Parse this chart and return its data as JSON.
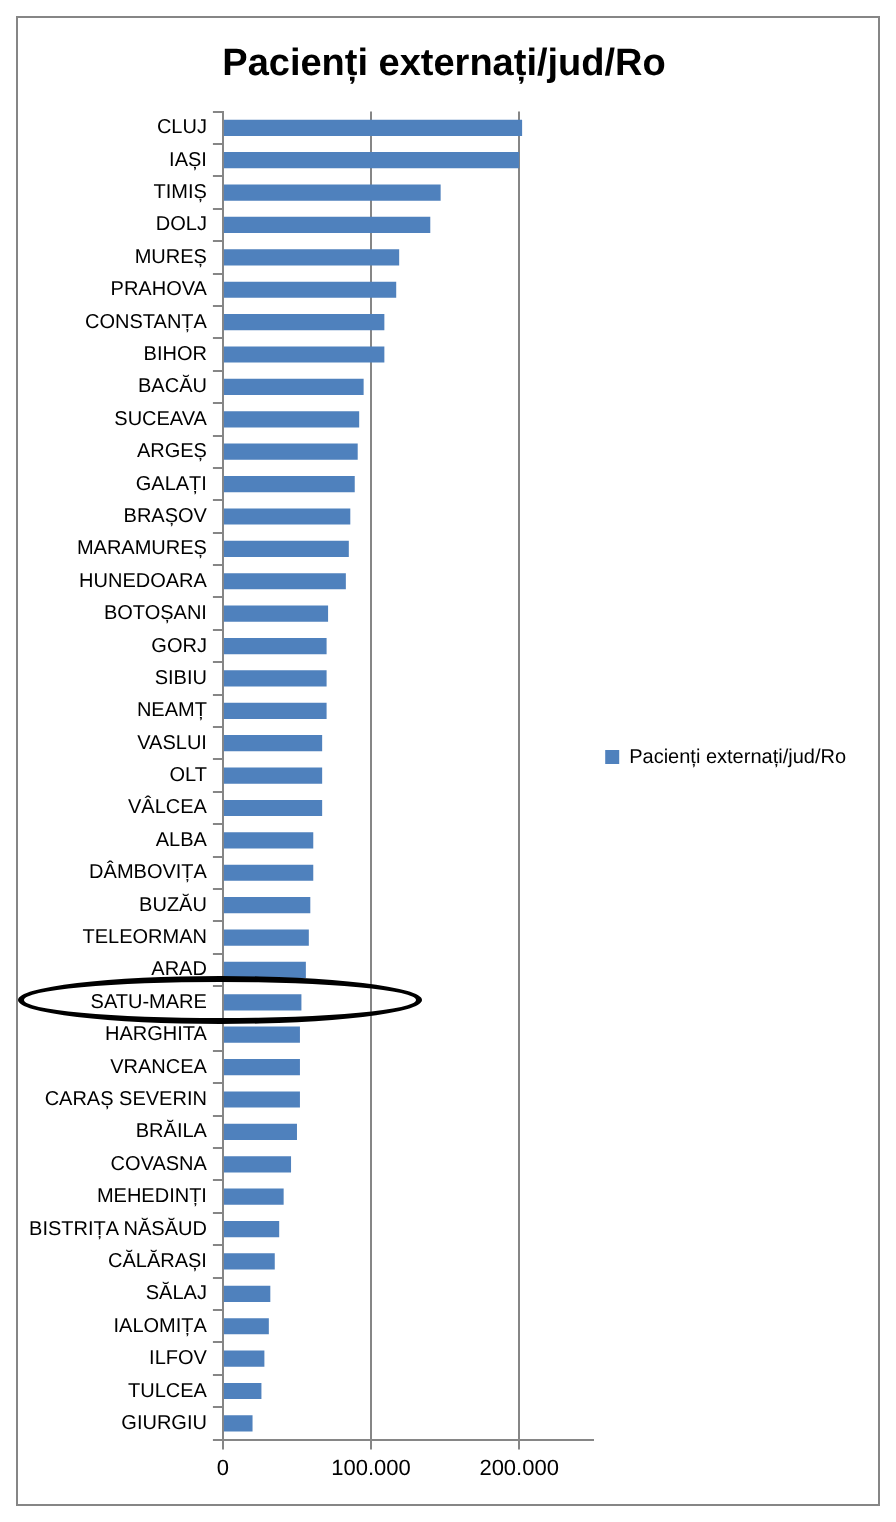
{
  "chart_data": {
    "type": "bar",
    "orientation": "horizontal",
    "title": "Pacienți externați/jud/Ro",
    "categories": [
      "CLUJ",
      "IAȘI",
      "TIMIȘ",
      "DOLJ",
      "MUREȘ",
      "PRAHOVA",
      "CONSTANȚA",
      "BIHOR",
      "BACĂU",
      "SUCEAVA",
      "ARGEȘ",
      "GALAȚI",
      "BRAȘOV",
      "MARAMUREȘ",
      "HUNEDOARA",
      "BOTOȘANI",
      "GORJ",
      "SIBIU",
      "NEAMȚ",
      "VASLUI",
      "OLT",
      "VÂLCEA",
      "ALBA",
      "DÂMBOVIȚA",
      "BUZĂU",
      "TELEORMAN",
      "ARAD",
      "SATU-MARE",
      "HARGHITA",
      "VRANCEA",
      "CARAȘ SEVERIN",
      "BRĂILA",
      "COVASNA",
      "MEHEDINȚI",
      "BISTRIȚA NĂSĂUD",
      "CĂLĂRAȘI",
      "SĂLAJ",
      "IALOMIȚA",
      "ILFOV",
      "TULCEA",
      "GIURGIU"
    ],
    "series": [
      {
        "name": "Pacienți externați/jud/Ro",
        "color": "#4f81bd",
        "values": [
          202000,
          200000,
          147000,
          140000,
          119000,
          117000,
          109000,
          109000,
          95000,
          92000,
          91000,
          89000,
          86000,
          85000,
          83000,
          71000,
          70000,
          70000,
          70000,
          67000,
          67000,
          67000,
          61000,
          61000,
          59000,
          58000,
          56000,
          53000,
          52000,
          52000,
          52000,
          50000,
          46000,
          41000,
          38000,
          35000,
          32000,
          31000,
          28000,
          26000,
          20000
        ]
      }
    ],
    "xlim": [
      0,
      250000
    ],
    "xticks": [
      0,
      {
        "value": 100000,
        "label": "100.000"
      },
      {
        "value": 200000,
        "label": "200.000"
      }
    ],
    "grid": "x",
    "legend": "right"
  }
}
